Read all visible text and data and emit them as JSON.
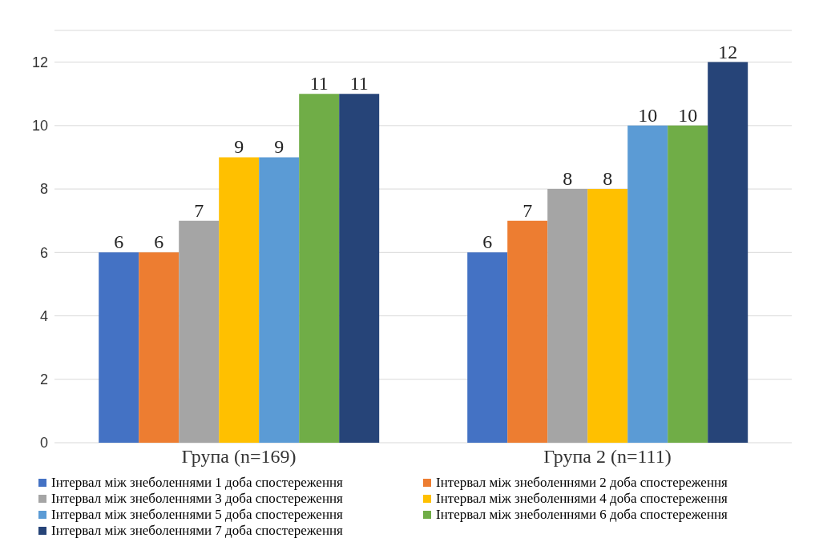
{
  "chart_data": {
    "type": "bar",
    "categories": [
      "Група (n=169)",
      "Група 2 (n=111)"
    ],
    "series": [
      {
        "name": "Інтервал між знеболеннями 1 доба спостереження",
        "color": "#4472c4",
        "values": [
          6,
          6
        ]
      },
      {
        "name": "Інтервал між знеболеннями 2 доба спостереження",
        "color": "#ed7d31",
        "values": [
          6,
          7
        ]
      },
      {
        "name": "Інтервал між знеболеннями 3 доба спостереження",
        "color": "#a5a5a5",
        "values": [
          7,
          8
        ]
      },
      {
        "name": "Інтервал між знеболеннями 4 доба спостереження",
        "color": "#ffc000",
        "values": [
          9,
          8
        ]
      },
      {
        "name": "Інтервал між знеболеннями 5 доба спостереження",
        "color": "#5b9bd5",
        "values": [
          9,
          10
        ]
      },
      {
        "name": "Інтервал між знеболеннями 6 доба спостереження",
        "color": "#70ad47",
        "values": [
          11,
          10
        ]
      },
      {
        "name": "Інтервал між знеболеннями 7 доба спостереження",
        "color": "#264478",
        "values": [
          11,
          12
        ]
      }
    ],
    "ylim": [
      0,
      13
    ],
    "yticks": [
      0,
      2,
      4,
      6,
      8,
      10,
      12
    ],
    "grid": "y",
    "legend": "bottom",
    "data_labels": true
  }
}
